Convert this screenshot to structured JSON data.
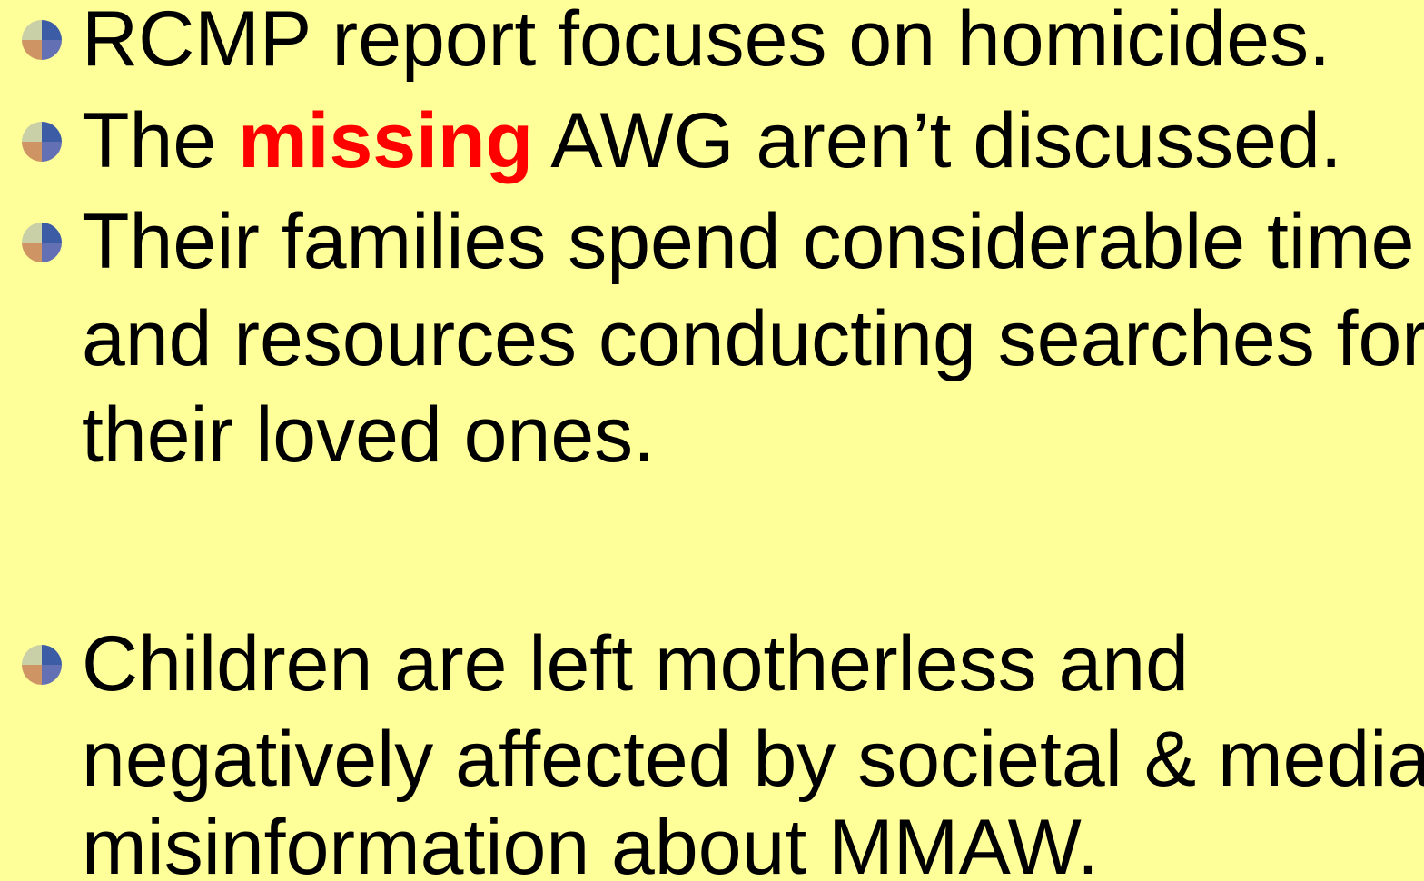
{
  "slide": {
    "background": "#ffff99",
    "text_color": "#000000",
    "bullets": [
      {
        "lines": [
          [
            {
              "text": "RCMP report focuses on homicides."
            }
          ]
        ]
      },
      {
        "lines": [
          [
            {
              "text": "The "
            },
            {
              "text": "missing",
              "color": "#ff0000",
              "bold": true
            },
            {
              "text": " AWG aren’t discussed."
            }
          ]
        ]
      },
      {
        "lines": [
          [
            {
              "text": "Their families spend considerable time"
            }
          ],
          [
            {
              "text": "and resources conducting searches for"
            }
          ],
          [
            {
              "text": "their loved ones."
            }
          ]
        ]
      },
      {
        "lines": [
          [
            {
              "text": "Children are left motherless and"
            }
          ],
          [
            {
              "text": "negatively affected by societal & media"
            }
          ],
          [
            {
              "text": "misinformation about MMAW."
            }
          ]
        ]
      }
    ]
  }
}
